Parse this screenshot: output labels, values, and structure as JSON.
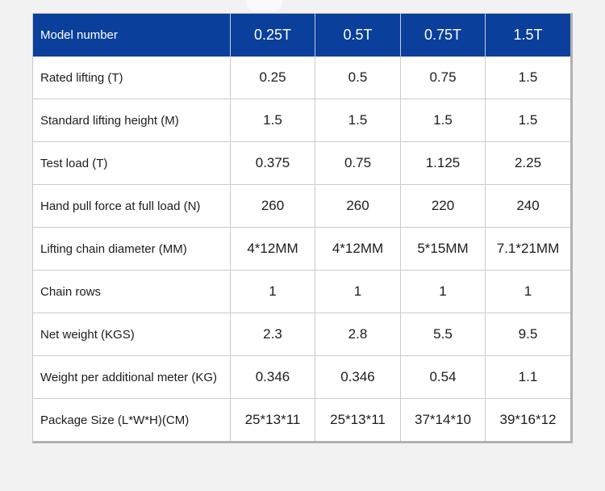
{
  "colors": {
    "page_bg": "#F2F2F2",
    "header_bg": "#0A3F9B",
    "header_text": "#FFFFFF",
    "body_text": "#1C1C1C",
    "grid_line": "#CCCCCC",
    "outer_border": "#B1B1B1"
  },
  "table": {
    "header": {
      "columns": [
        "Model number",
        "0.25T",
        "0.5T",
        "0.75T",
        "1.5T"
      ]
    },
    "rows": [
      {
        "label": "Rated lifting (T)",
        "values": [
          "0.25",
          "0.5",
          "0.75",
          "1.5"
        ]
      },
      {
        "label": "Standard lifting height (M)",
        "values": [
          "1.5",
          "1.5",
          "1.5",
          "1.5"
        ]
      },
      {
        "label": "Test load (T)",
        "values": [
          "0.375",
          "0.75",
          "1.125",
          "2.25"
        ]
      },
      {
        "label": "Hand pull force at full load (N)",
        "values": [
          "260",
          "260",
          "220",
          "240"
        ]
      },
      {
        "label": "Lifting chain diameter (MM)",
        "values": [
          "4*12MM",
          "4*12MM",
          "5*15MM",
          "7.1*21MM"
        ]
      },
      {
        "label": "Chain rows",
        "values": [
          "1",
          "1",
          "1",
          "1"
        ]
      },
      {
        "label": "Net weight (KGS)",
        "values": [
          "2.3",
          "2.8",
          "5.5",
          "9.5"
        ]
      },
      {
        "label": "Weight per additional meter (KG)",
        "values": [
          "0.346",
          "0.346",
          "0.54",
          "1.1"
        ]
      },
      {
        "label": "Package Size (L*W*H)(CM)",
        "values": [
          "25*13*11",
          "25*13*11",
          "37*14*10",
          "39*16*12"
        ]
      }
    ]
  }
}
